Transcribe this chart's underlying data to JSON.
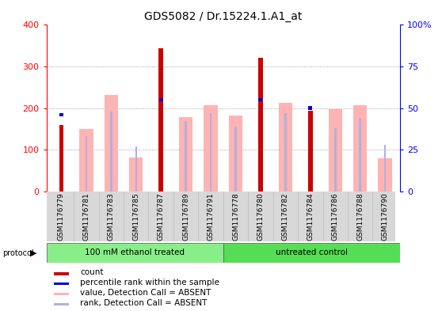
{
  "title": "GDS5082 / Dr.15224.1.A1_at",
  "samples": [
    "GSM1176779",
    "GSM1176781",
    "GSM1176783",
    "GSM1176785",
    "GSM1176787",
    "GSM1176789",
    "GSM1176791",
    "GSM1176778",
    "GSM1176780",
    "GSM1176782",
    "GSM1176784",
    "GSM1176786",
    "GSM1176788",
    "GSM1176790"
  ],
  "count_values": [
    160,
    0,
    0,
    0,
    343,
    0,
    0,
    0,
    320,
    0,
    193,
    0,
    0,
    0
  ],
  "rank_pct": [
    46,
    0,
    0,
    0,
    55,
    0,
    0,
    0,
    55,
    0,
    50,
    0,
    0,
    0
  ],
  "absent_value": [
    0,
    150,
    232,
    82,
    0,
    178,
    207,
    183,
    0,
    213,
    0,
    197,
    207,
    80
  ],
  "absent_rank_pct": [
    0,
    33,
    48,
    0,
    0,
    42,
    47,
    39,
    0,
    47,
    0,
    38,
    44,
    0
  ],
  "absent_rank_small_pct": [
    0,
    0,
    0,
    27,
    0,
    0,
    0,
    0,
    0,
    0,
    0,
    0,
    0,
    28
  ],
  "group1_label": "100 mM ethanol treated",
  "group2_label": "untreated control",
  "group1_count": 7,
  "group2_count": 7,
  "ylim_left": [
    0,
    400
  ],
  "ylim_right": [
    0,
    100
  ],
  "yticks_left": [
    0,
    100,
    200,
    300,
    400
  ],
  "yticks_right": [
    0,
    25,
    50,
    75,
    100
  ],
  "color_count": "#cc0000",
  "color_rank": "#0000cc",
  "color_absent_value": "#ffb3b3",
  "color_absent_rank": "#b0b0dd",
  "color_group1": "#88ee88",
  "color_group2": "#55dd55",
  "grid_color": "#888888",
  "bg_sample": "#d8d8d8"
}
